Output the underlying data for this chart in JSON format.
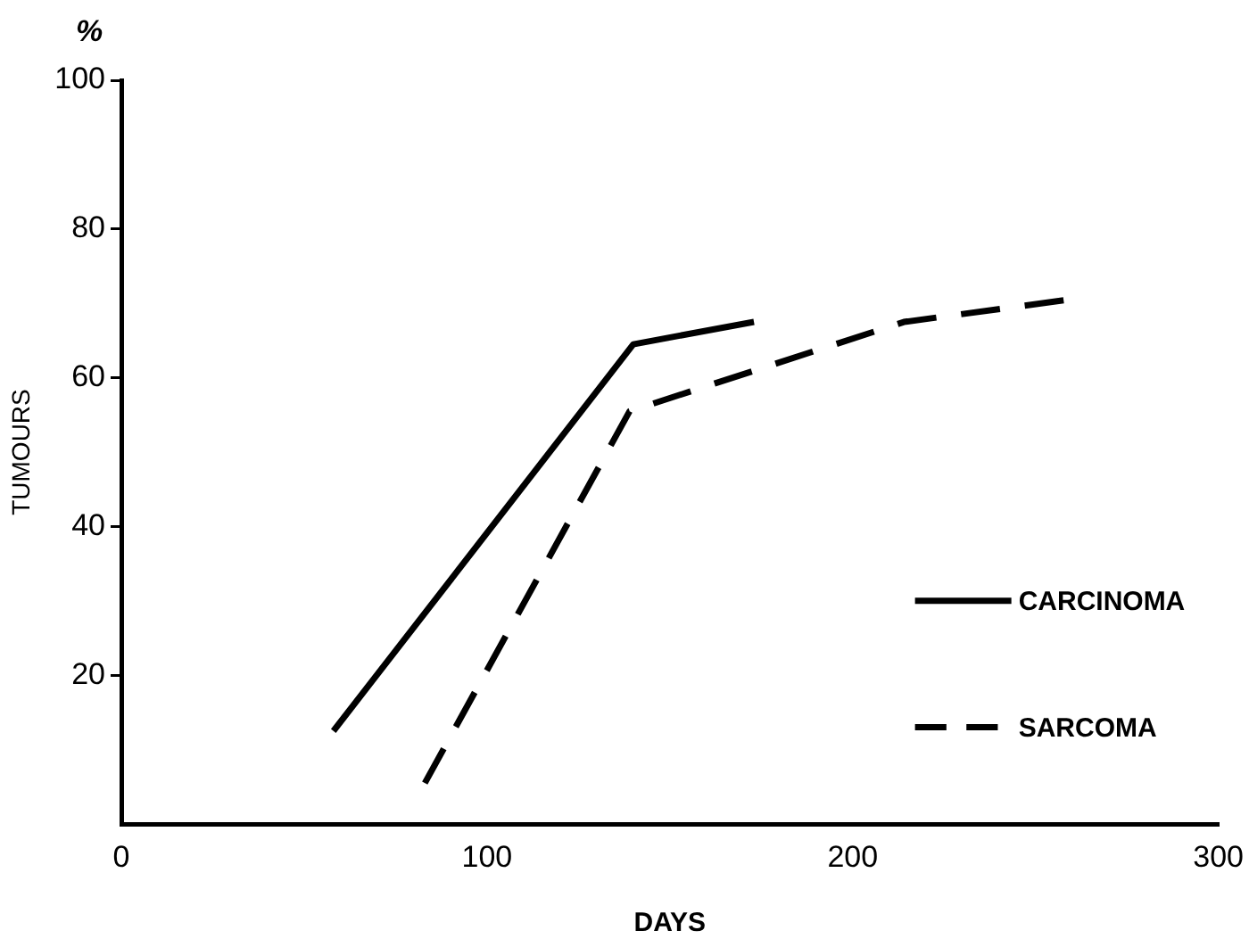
{
  "chart_data": {
    "type": "line",
    "xlabel": "DAYS",
    "ylabel": "TUMOURS",
    "annotations": [
      "%"
    ],
    "xlim": [
      0,
      300
    ],
    "xticks": [
      0,
      100,
      200,
      300
    ],
    "ylim": [
      0,
      100
    ],
    "yticks": [
      20,
      40,
      60,
      80,
      100
    ],
    "grid": false,
    "legend": "right",
    "marker": "none",
    "series": [
      {
        "name": "CARCINOMA",
        "color": "#000000",
        "line_style": "solid",
        "x": [
          58,
          140,
          173
        ],
        "values": [
          12.5,
          64.5,
          67.5
        ]
      },
      {
        "name": "SARCOMA",
        "color": "#000000",
        "line_style": "dashed",
        "x": [
          83,
          139,
          214,
          259
        ],
        "values": [
          5.5,
          55.5,
          67.5,
          70.5
        ]
      }
    ]
  }
}
